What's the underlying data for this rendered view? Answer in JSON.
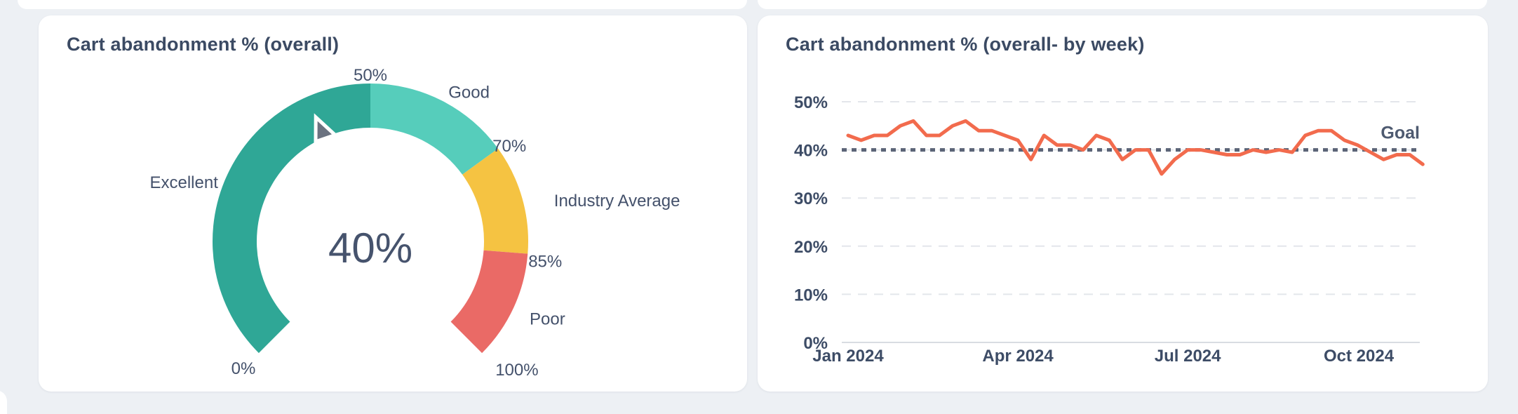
{
  "page": {
    "background": "#edf0f4",
    "card_background": "#ffffff"
  },
  "chart_data": [
    {
      "type": "gauge",
      "title": "Cart abandonment % (overall)",
      "value": 40,
      "value_label": "40%",
      "min": 0,
      "max": 100,
      "start_angle": 225,
      "end_angle": -45,
      "zones": [
        {
          "label": "Excellent",
          "from": 0,
          "to": 50,
          "color": "#2fa796",
          "mid": 25,
          "anchor": "end",
          "r": 235,
          "dy": 14
        },
        {
          "label": "Good",
          "from": 50,
          "to": 70,
          "color": "#56cdbb",
          "mid": 60,
          "anchor": "start",
          "r": 245,
          "dy": 14
        },
        {
          "label": "Industry Average",
          "from": 70,
          "to": 85,
          "color": "#f5c342",
          "mid": 77.5,
          "anchor": "start",
          "r": 272,
          "dy": 24
        },
        {
          "label": "Poor",
          "from": 85,
          "to": 100,
          "color": "#ea6a66",
          "mid": 92.5,
          "anchor": "start",
          "r": 250,
          "dy": 14
        }
      ],
      "tick_labels": [
        {
          "value": 0,
          "label": "0%",
          "anchor": "middle",
          "r": 256,
          "dy": 8
        },
        {
          "value": 50,
          "label": "50%",
          "anchor": "middle",
          "r": 237,
          "dy": 8
        },
        {
          "value": 70,
          "label": "70%",
          "anchor": "middle",
          "r": 245,
          "dy": 16
        },
        {
          "value": 85,
          "label": "85%",
          "anchor": "middle",
          "r": 250,
          "dy": 17
        },
        {
          "value": 100,
          "label": "100%",
          "anchor": "start",
          "r": 252,
          "dy": 13
        }
      ],
      "needle": {
        "value": 40,
        "color": "#6b7280",
        "outline": "#ffffff",
        "shape": [
          [
            193,
            11
          ],
          [
            162,
            -5
          ],
          [
            158,
            24
          ]
        ]
      }
    },
    {
      "type": "line",
      "title": "Cart abandonment % (overall- by week)",
      "ylim": [
        0,
        50
      ],
      "grid": "dashed horizontal",
      "y_ticks": [
        {
          "value": 0,
          "label": "0%"
        },
        {
          "value": 10,
          "label": "10%"
        },
        {
          "value": 20,
          "label": "20%"
        },
        {
          "value": 30,
          "label": "30%"
        },
        {
          "value": 40,
          "label": "40%"
        },
        {
          "value": 50,
          "label": "50%"
        }
      ],
      "x_ticks": [
        {
          "label": "Jan 2024",
          "week": 0
        },
        {
          "label": "Apr 2024",
          "week": 13
        },
        {
          "label": "Jul 2024",
          "week": 26
        },
        {
          "label": "Oct 2024",
          "week": 39.1
        }
      ],
      "goal": {
        "label": "Goal",
        "value": 40,
        "color": "#5b6477"
      },
      "series": [
        {
          "name": "Cart abandonment %",
          "color": "#f26b4d",
          "values": [
            43,
            42,
            43,
            43,
            45,
            46,
            43,
            43,
            45,
            46,
            44,
            44,
            43,
            42,
            38,
            43,
            41,
            41,
            40,
            43,
            42,
            38,
            40,
            40,
            35,
            38,
            40,
            40,
            39.5,
            39,
            39,
            40,
            39.5,
            40,
            39.5,
            43,
            44,
            44,
            42,
            41,
            39.5,
            38,
            39,
            39,
            37
          ]
        }
      ]
    }
  ]
}
